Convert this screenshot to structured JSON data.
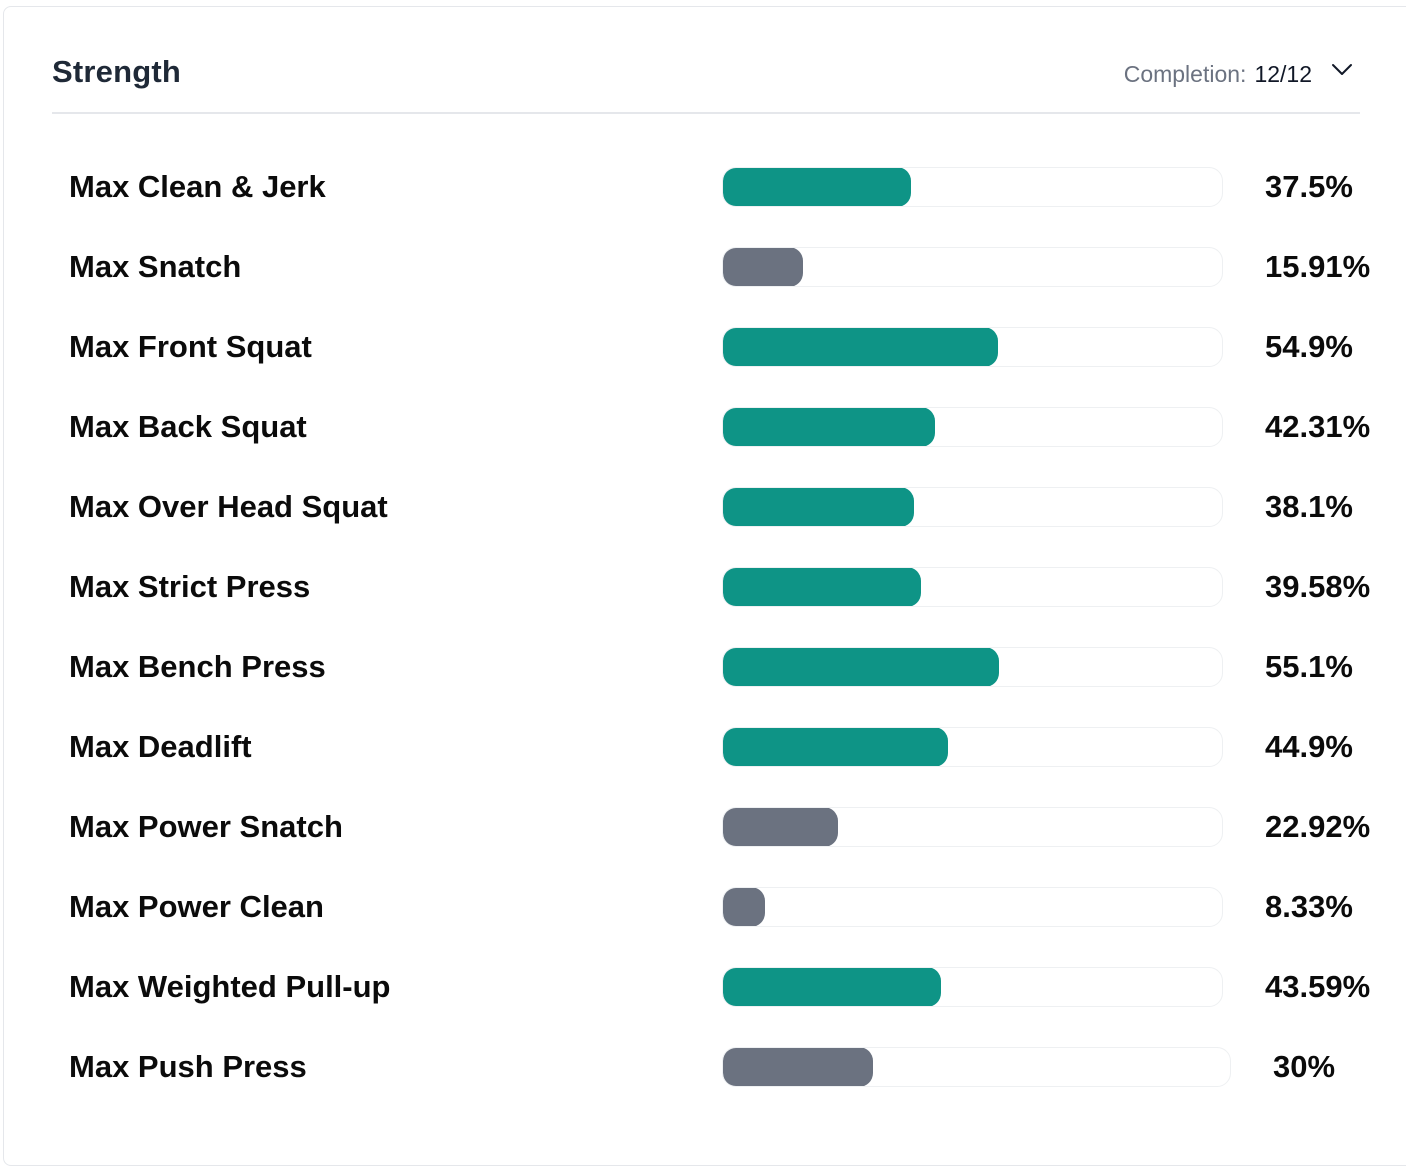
{
  "section": {
    "title": "Strength",
    "completion_label": "Completion:",
    "completion_value": "12/12",
    "expand_icon": "chevron-down-icon"
  },
  "colors": {
    "teal": "#0e9486",
    "gray": "#6b7280"
  },
  "items": [
    {
      "label": "Max Clean & Jerk",
      "percent": "37.5%",
      "value": 37.5,
      "color": "teal"
    },
    {
      "label": "Max Snatch",
      "percent": "15.91%",
      "value": 15.91,
      "color": "gray"
    },
    {
      "label": "Max Front Squat",
      "percent": "54.9%",
      "value": 54.9,
      "color": "teal"
    },
    {
      "label": "Max Back Squat",
      "percent": "42.31%",
      "value": 42.31,
      "color": "teal"
    },
    {
      "label": "Max Over Head Squat",
      "percent": "38.1%",
      "value": 38.1,
      "color": "teal"
    },
    {
      "label": "Max Strict Press",
      "percent": "39.58%",
      "value": 39.58,
      "color": "teal"
    },
    {
      "label": "Max Bench Press",
      "percent": "55.1%",
      "value": 55.1,
      "color": "teal"
    },
    {
      "label": "Max Deadlift",
      "percent": "44.9%",
      "value": 44.9,
      "color": "teal"
    },
    {
      "label": "Max Power Snatch",
      "percent": "22.92%",
      "value": 22.92,
      "color": "gray"
    },
    {
      "label": "Max Power Clean",
      "percent": "8.33%",
      "value": 8.33,
      "color": "gray"
    },
    {
      "label": "Max Weighted Pull-up",
      "percent": "43.59%",
      "value": 43.59,
      "color": "teal"
    },
    {
      "label": "Max Push Press",
      "percent": "30%",
      "value": 30,
      "color": "gray"
    }
  ]
}
